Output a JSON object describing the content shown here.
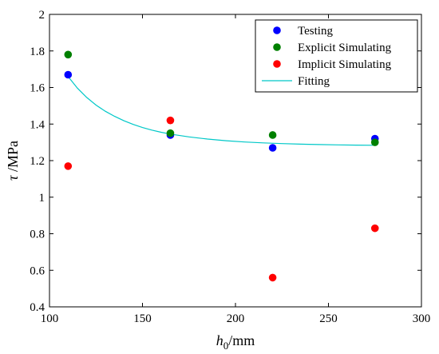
{
  "chart_data": {
    "type": "scatter",
    "xlabel": {
      "symbol": "h",
      "subscript": "0",
      "unit": "/mm"
    },
    "ylabel": {
      "symbol": "τ",
      "unit": " /MPa"
    },
    "xlim": [
      100,
      300
    ],
    "ylim": [
      0.4,
      2
    ],
    "xticks": [
      100,
      150,
      200,
      250,
      300
    ],
    "yticks": [
      0.4,
      0.6,
      0.8,
      1,
      1.2,
      1.4,
      1.6,
      1.8,
      2
    ],
    "xtick_labels": [
      "100",
      "150",
      "200",
      "250",
      "300"
    ],
    "ytick_labels": [
      "0.4",
      "0.6",
      "0.8",
      "1",
      "1.2",
      "1.4",
      "1.6",
      "1.8",
      "2"
    ],
    "grid": false,
    "legend_position": "top-right",
    "series": [
      {
        "name": "Testing",
        "kind": "scatter",
        "color": "#0000ff",
        "x": [
          110,
          165,
          220,
          275
        ],
        "y": [
          1.67,
          1.34,
          1.27,
          1.32
        ]
      },
      {
        "name": "Explicit Simulating",
        "kind": "scatter",
        "color": "#008000",
        "x": [
          110,
          165,
          220,
          275
        ],
        "y": [
          1.78,
          1.35,
          1.34,
          1.3
        ]
      },
      {
        "name": "Implicit Simulating",
        "kind": "scatter",
        "color": "#ff0000",
        "x": [
          110,
          165,
          220,
          275
        ],
        "y": [
          1.17,
          1.42,
          0.56,
          0.83
        ]
      },
      {
        "name": "Fitting",
        "kind": "line",
        "color": "#00c8c8",
        "x": [
          110,
          115,
          120,
          125,
          130,
          135,
          140,
          145,
          150,
          155,
          160,
          165,
          175,
          185,
          195,
          205,
          215,
          225,
          235,
          245,
          255,
          265,
          275
        ],
        "y": [
          1.66,
          1.597,
          1.546,
          1.504,
          1.47,
          1.442,
          1.418,
          1.398,
          1.381,
          1.367,
          1.355,
          1.345,
          1.33,
          1.318,
          1.309,
          1.302,
          1.297,
          1.293,
          1.29,
          1.288,
          1.286,
          1.285,
          1.284
        ]
      }
    ]
  }
}
